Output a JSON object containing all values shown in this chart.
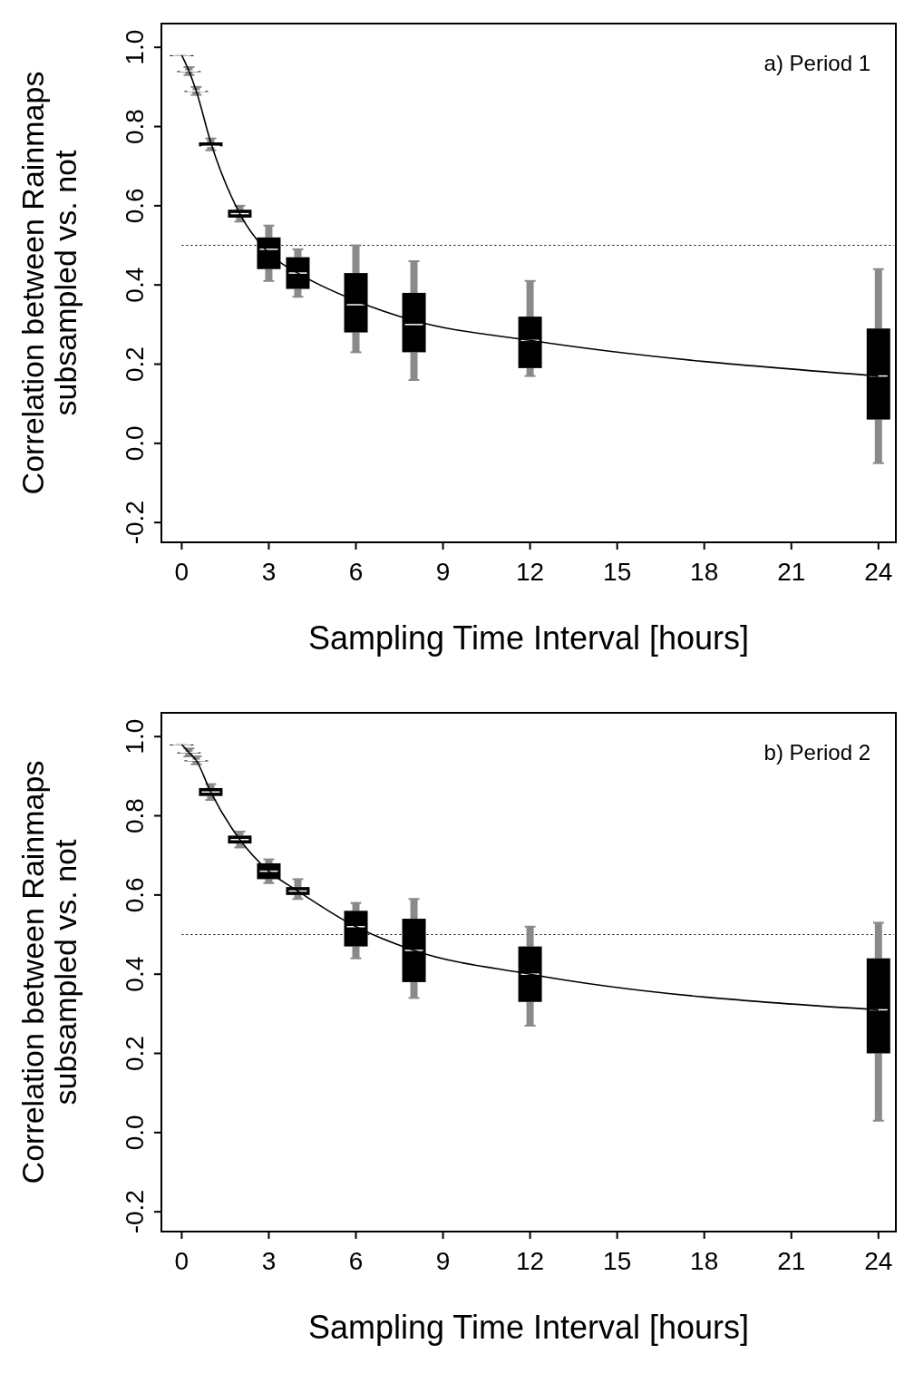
{
  "chart_data": [
    {
      "type": "box",
      "xlabel": "Sampling Time Interval [hours]",
      "ylabel": "Correlation between Rainmaps\nsubsampled vs. not",
      "annotations": [
        "a) Period 1"
      ],
      "x": [
        0,
        0.25,
        0.5,
        1,
        2,
        3,
        4,
        6,
        8,
        12,
        24
      ],
      "boxes": [
        {
          "low": 0.98,
          "q1": 0.98,
          "median": 0.98,
          "q3": 0.98,
          "high": 0.98
        },
        {
          "low": 0.93,
          "q1": 0.94,
          "median": 0.94,
          "q3": 0.94,
          "high": 0.95
        },
        {
          "low": 0.88,
          "q1": 0.89,
          "median": 0.89,
          "q3": 0.89,
          "high": 0.9
        },
        {
          "low": 0.74,
          "q1": 0.75,
          "median": 0.75,
          "q3": 0.76,
          "high": 0.77
        },
        {
          "low": 0.56,
          "q1": 0.57,
          "median": 0.58,
          "q3": 0.59,
          "high": 0.6
        },
        {
          "low": 0.41,
          "q1": 0.44,
          "median": 0.49,
          "q3": 0.52,
          "high": 0.55
        },
        {
          "low": 0.37,
          "q1": 0.39,
          "median": 0.43,
          "q3": 0.47,
          "high": 0.49
        },
        {
          "low": 0.23,
          "q1": 0.28,
          "median": 0.35,
          "q3": 0.43,
          "high": 0.5
        },
        {
          "low": 0.16,
          "q1": 0.23,
          "median": 0.3,
          "q3": 0.38,
          "high": 0.46
        },
        {
          "low": 0.17,
          "q1": 0.19,
          "median": 0.26,
          "q3": 0.32,
          "high": 0.41
        },
        {
          "low": -0.05,
          "q1": 0.06,
          "median": 0.17,
          "q3": 0.29,
          "high": 0.44
        }
      ],
      "series": [
        {
          "type": "line",
          "color": "#000000",
          "x": [
            0,
            0.25,
            0.5,
            1,
            2,
            3,
            4,
            6,
            8,
            12,
            24
          ],
          "values": [
            0.98,
            0.94,
            0.89,
            0.76,
            0.58,
            0.48,
            0.43,
            0.36,
            0.31,
            0.26,
            0.17
          ]
        }
      ],
      "ref_lines": [
        {
          "axis": "y",
          "value": 0.5,
          "line_style": "dotted",
          "color": "#000000"
        }
      ],
      "xlim": [
        -0.7,
        24.6
      ],
      "ylim": [
        -0.25,
        1.06
      ],
      "xticks": [
        0,
        3,
        6,
        9,
        12,
        15,
        18,
        21,
        24
      ],
      "yticks": [
        {
          "value": -0.2,
          "label": "-0.2"
        },
        {
          "value": 0,
          "label": "0.0"
        },
        {
          "value": 0.2,
          "label": "0.2"
        },
        {
          "value": 0.4,
          "label": "0.4"
        },
        {
          "value": 0.6,
          "label": "0.6"
        },
        {
          "value": 0.8,
          "label": "0.8"
        },
        {
          "value": 1,
          "label": "1.0"
        }
      ],
      "grid": false
    },
    {
      "type": "box",
      "xlabel": "Sampling Time Interval [hours]",
      "ylabel": "Correlation between Rainmaps\nsubsampled vs. not",
      "annotations": [
        "b) Period 2"
      ],
      "x": [
        0,
        0.25,
        0.5,
        1,
        2,
        3,
        4,
        6,
        8,
        12,
        24
      ],
      "boxes": [
        {
          "low": 0.98,
          "q1": 0.98,
          "median": 0.98,
          "q3": 0.98,
          "high": 0.98
        },
        {
          "low": 0.95,
          "q1": 0.96,
          "median": 0.96,
          "q3": 0.96,
          "high": 0.97
        },
        {
          "low": 0.93,
          "q1": 0.94,
          "median": 0.94,
          "q3": 0.94,
          "high": 0.95
        },
        {
          "low": 0.84,
          "q1": 0.85,
          "median": 0.86,
          "q3": 0.87,
          "high": 0.88
        },
        {
          "low": 0.72,
          "q1": 0.73,
          "median": 0.74,
          "q3": 0.75,
          "high": 0.76
        },
        {
          "low": 0.63,
          "q1": 0.64,
          "median": 0.66,
          "q3": 0.68,
          "high": 0.69
        },
        {
          "low": 0.59,
          "q1": 0.6,
          "median": 0.61,
          "q3": 0.62,
          "high": 0.64
        },
        {
          "low": 0.44,
          "q1": 0.47,
          "median": 0.52,
          "q3": 0.56,
          "high": 0.58
        },
        {
          "low": 0.34,
          "q1": 0.38,
          "median": 0.46,
          "q3": 0.54,
          "high": 0.59
        },
        {
          "low": 0.27,
          "q1": 0.33,
          "median": 0.4,
          "q3": 0.47,
          "high": 0.52
        },
        {
          "low": 0.03,
          "q1": 0.2,
          "median": 0.31,
          "q3": 0.44,
          "high": 0.53
        }
      ],
      "series": [
        {
          "type": "line",
          "color": "#000000",
          "x": [
            0,
            0.25,
            0.5,
            1,
            2,
            3,
            4,
            6,
            8,
            12,
            24
          ],
          "values": [
            0.98,
            0.96,
            0.94,
            0.86,
            0.74,
            0.66,
            0.61,
            0.52,
            0.46,
            0.4,
            0.31
          ]
        }
      ],
      "ref_lines": [
        {
          "axis": "y",
          "value": 0.5,
          "line_style": "dotted",
          "color": "#000000"
        }
      ],
      "xlim": [
        -0.7,
        24.6
      ],
      "ylim": [
        -0.25,
        1.06
      ],
      "xticks": [
        0,
        3,
        6,
        9,
        12,
        15,
        18,
        21,
        24
      ],
      "yticks": [
        {
          "value": -0.2,
          "label": "-0.2"
        },
        {
          "value": 0,
          "label": "0.0"
        },
        {
          "value": 0.2,
          "label": "0.2"
        },
        {
          "value": 0.4,
          "label": "0.4"
        },
        {
          "value": 0.6,
          "label": "0.6"
        },
        {
          "value": 0.8,
          "label": "0.8"
        },
        {
          "value": 1,
          "label": "1.0"
        }
      ],
      "grid": false
    }
  ]
}
